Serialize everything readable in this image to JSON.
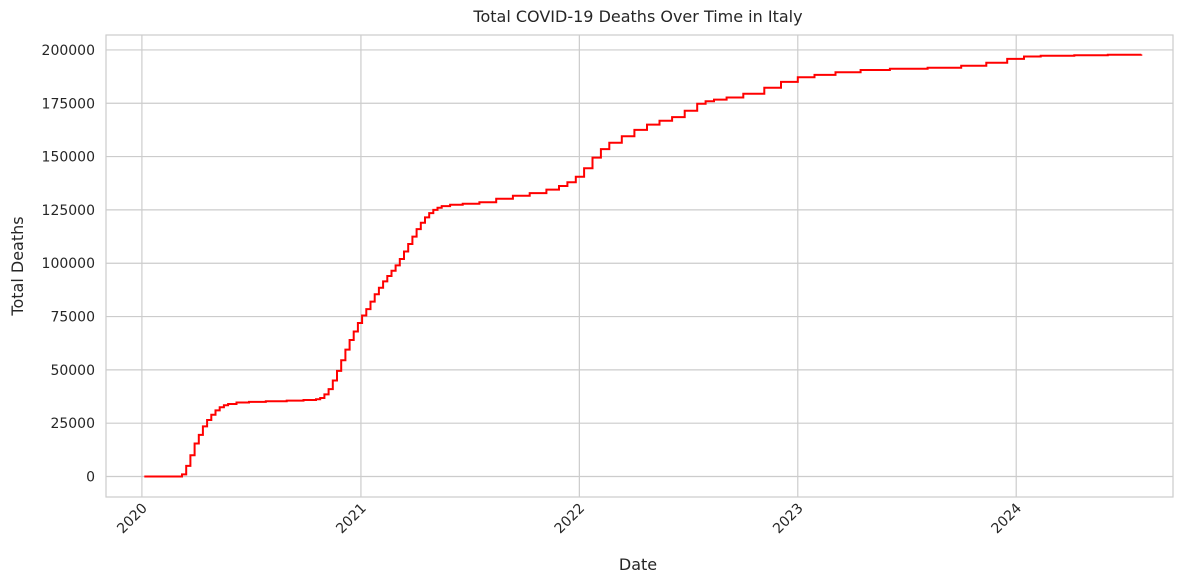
{
  "chart_data": {
    "type": "line",
    "title": "Total COVID-19 Deaths Over Time in Italy",
    "xlabel": "Date",
    "ylabel": "Total Deaths",
    "x_axis": {
      "type": "date",
      "range": [
        "2019-11-02",
        "2024-09-19"
      ],
      "ticks": [
        "2020-01-01",
        "2021-01-01",
        "2022-01-01",
        "2023-01-01",
        "2024-01-01"
      ],
      "tick_labels": [
        "2020",
        "2021",
        "2022",
        "2023",
        "2024"
      ]
    },
    "y_axis": {
      "range": [
        -9600,
        207000
      ],
      "ticks": [
        0,
        25000,
        50000,
        75000,
        100000,
        125000,
        150000,
        175000,
        200000
      ],
      "tick_labels": [
        "0",
        "25000",
        "50000",
        "75000",
        "100000",
        "125000",
        "150000",
        "175000",
        "200000"
      ]
    },
    "grid": true,
    "line_style": "step",
    "series": [
      {
        "color": "#ff0000",
        "x": [
          "2020-01-05",
          "2020-02-16",
          "2020-03-08",
          "2020-03-15",
          "2020-03-22",
          "2020-03-29",
          "2020-04-05",
          "2020-04-12",
          "2020-04-19",
          "2020-04-26",
          "2020-05-03",
          "2020-05-10",
          "2020-05-17",
          "2020-05-24",
          "2020-06-07",
          "2020-06-28",
          "2020-07-26",
          "2020-08-30",
          "2020-09-27",
          "2020-10-18",
          "2020-10-25",
          "2020-11-01",
          "2020-11-08",
          "2020-11-15",
          "2020-11-22",
          "2020-11-29",
          "2020-12-06",
          "2020-12-13",
          "2020-12-20",
          "2020-12-27",
          "2021-01-03",
          "2021-01-10",
          "2021-01-17",
          "2021-01-24",
          "2021-01-31",
          "2021-02-07",
          "2021-02-14",
          "2021-02-21",
          "2021-02-28",
          "2021-03-07",
          "2021-03-14",
          "2021-03-21",
          "2021-03-28",
          "2021-04-04",
          "2021-04-11",
          "2021-04-18",
          "2021-04-25",
          "2021-05-02",
          "2021-05-09",
          "2021-05-16",
          "2021-05-30",
          "2021-06-20",
          "2021-07-18",
          "2021-08-15",
          "2021-09-12",
          "2021-10-10",
          "2021-11-07",
          "2021-11-28",
          "2021-12-12",
          "2021-12-26",
          "2022-01-09",
          "2022-01-23",
          "2022-02-06",
          "2022-02-20",
          "2022-03-13",
          "2022-04-03",
          "2022-04-24",
          "2022-05-15",
          "2022-06-05",
          "2022-06-26",
          "2022-07-17",
          "2022-07-31",
          "2022-08-14",
          "2022-09-04",
          "2022-10-02",
          "2022-11-06",
          "2022-12-04",
          "2023-01-01",
          "2023-01-29",
          "2023-03-05",
          "2023-04-16",
          "2023-06-04",
          "2023-08-06",
          "2023-10-01",
          "2023-11-12",
          "2023-12-17",
          "2024-01-14",
          "2024-02-11",
          "2024-04-07",
          "2024-06-02",
          "2024-07-28"
        ],
        "y": [
          0,
          0,
          1000,
          5000,
          10000,
          15500,
          19500,
          23500,
          26500,
          29000,
          31000,
          32500,
          33400,
          34000,
          34700,
          35000,
          35300,
          35600,
          35900,
          36200,
          36800,
          38500,
          41000,
          45000,
          49500,
          54500,
          59500,
          64000,
          68000,
          72000,
          75500,
          78500,
          82000,
          85500,
          88500,
          91500,
          94000,
          96500,
          99000,
          102000,
          105500,
          109000,
          112500,
          116000,
          119000,
          121500,
          123500,
          125000,
          126000,
          126800,
          127400,
          127900,
          128600,
          130200,
          131600,
          132900,
          134500,
          136200,
          138000,
          140500,
          144500,
          149500,
          153500,
          156500,
          159500,
          162500,
          165000,
          166800,
          168500,
          171500,
          174800,
          175900,
          176700,
          177700,
          179500,
          182300,
          185000,
          187200,
          188300,
          189500,
          190600,
          191200,
          191600,
          192600,
          194000,
          195800,
          196900,
          197300,
          197500,
          197700,
          197900
        ]
      }
    ]
  }
}
